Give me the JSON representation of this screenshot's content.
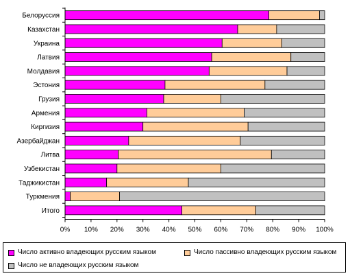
{
  "chart_data": {
    "type": "bar",
    "orientation": "horizontal",
    "stacked": true,
    "percent_stacked": true,
    "categories": [
      "Белоруссия",
      "Казахстан",
      "Украина",
      "Латвия",
      "Молдавия",
      "Эстония",
      "Грузия",
      "Армения",
      "Киргизия",
      "Азербайджан",
      "Литва",
      "Узбекистан",
      "Таджикистан",
      "Туркмения",
      "Итого"
    ],
    "series": [
      {
        "name": "Число активно владеющих русским языком",
        "color": "#ff00ff",
        "values": [
          78.5,
          66.5,
          60.5,
          56.5,
          55.5,
          38.5,
          38,
          31.5,
          30,
          24.5,
          20.5,
          20,
          16,
          2,
          45
        ]
      },
      {
        "name": "Число пассивно владеющих русским языком",
        "color": "#ffcc99",
        "values": [
          19.5,
          15,
          23,
          30.5,
          30,
          38.5,
          22,
          37.5,
          40.5,
          43,
          59,
          40,
          31.5,
          19,
          28.5
        ]
      },
      {
        "name": "Число не владеющих русским языком",
        "color": "#c0c0c0",
        "values": [
          2,
          18.5,
          16.5,
          13,
          14.5,
          23,
          40,
          31,
          29.5,
          32.5,
          20.5,
          40,
          52.5,
          79,
          26.5
        ]
      }
    ],
    "xlim": [
      0,
      100
    ],
    "x_ticks": [
      "0%",
      "10%",
      "20%",
      "30%",
      "40%",
      "50%",
      "60%",
      "70%",
      "80%",
      "90%",
      "100%"
    ],
    "grid": false,
    "legend_position": "bottom"
  }
}
